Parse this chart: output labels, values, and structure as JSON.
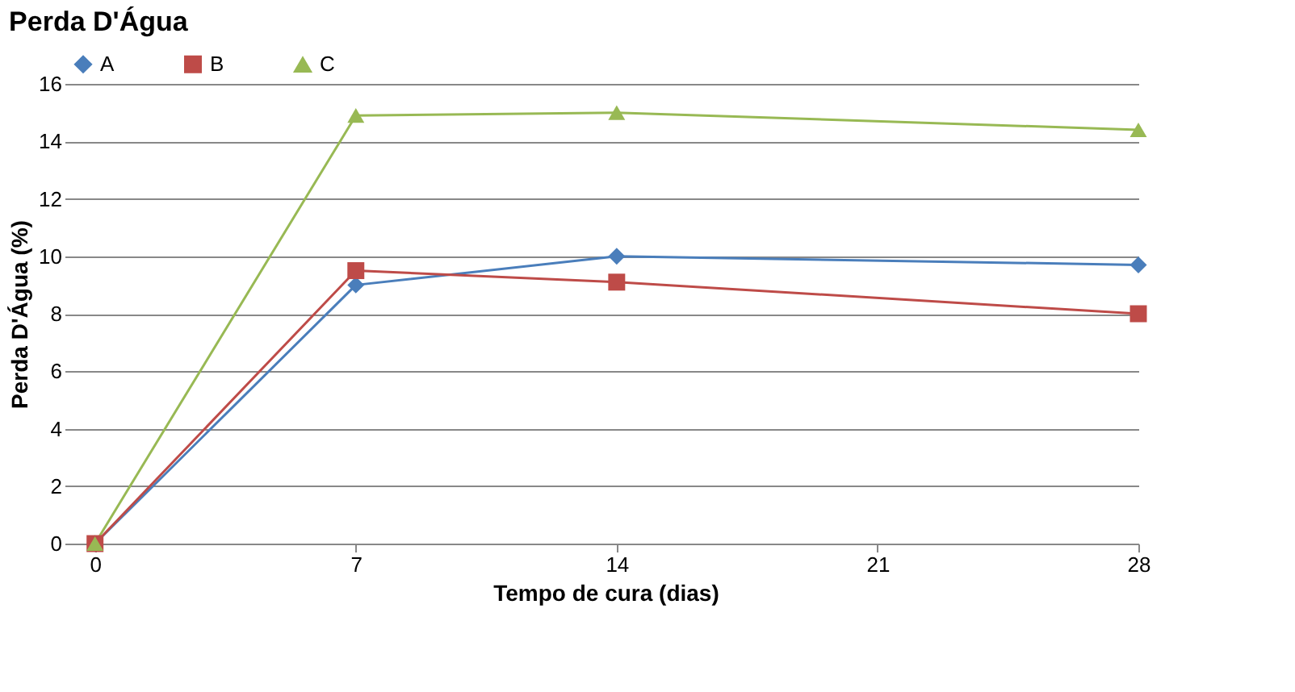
{
  "chart_data": {
    "type": "line",
    "title": "Perda D'Água",
    "xlabel": "Tempo de cura (dias)",
    "ylabel": "Perda D'Água (%)",
    "x": [
      0,
      7,
      14,
      28
    ],
    "series": [
      {
        "name": "A",
        "color": "#4a7ebb",
        "marker": "diamond",
        "values": [
          0,
          9.0,
          10.0,
          9.7
        ]
      },
      {
        "name": "B",
        "color": "#be4b48",
        "marker": "square",
        "values": [
          0,
          9.5,
          9.1,
          8.0
        ]
      },
      {
        "name": "C",
        "color": "#98b954",
        "marker": "triangle",
        "values": [
          0,
          14.9,
          15.0,
          14.4
        ]
      }
    ],
    "xlim": [
      -0.6,
      28
    ],
    "xticks": [
      0,
      7,
      14,
      21,
      28
    ],
    "ylim": [
      0,
      16
    ],
    "yticks": [
      0,
      2,
      4,
      6,
      8,
      10,
      12,
      14,
      16
    ],
    "grid": "y",
    "legend": "top",
    "line_style": "solid"
  }
}
